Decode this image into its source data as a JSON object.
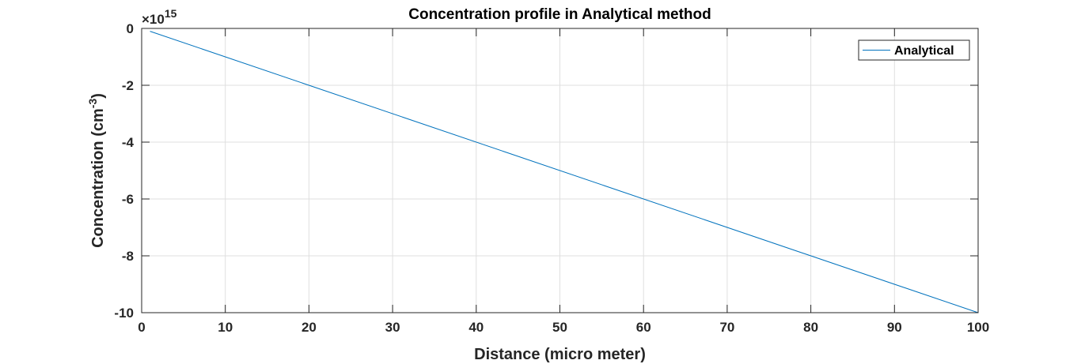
{
  "chart_data": {
    "type": "line",
    "title": "Concentration profile in Analytical method",
    "xlabel": "Distance (micro meter)",
    "ylabel": "Concentration (cm",
    "ylabel_superscript": "-3",
    "ylabel_close": ")",
    "y_exponent_prefix": "×10",
    "y_exponent": "15",
    "xlim": [
      0,
      100
    ],
    "ylim": [
      -10,
      0
    ],
    "y_scale_factor": 1000000000000000.0,
    "x_ticks": [
      0,
      10,
      20,
      30,
      40,
      50,
      60,
      70,
      80,
      90,
      100
    ],
    "x_tick_labels": [
      "0",
      "10",
      "20",
      "30",
      "40",
      "50",
      "60",
      "70",
      "80",
      "90",
      "100"
    ],
    "y_ticks": [
      0,
      -2,
      -4,
      -6,
      -8,
      -10
    ],
    "y_tick_labels": [
      "0",
      "-2",
      "-4",
      "-6",
      "-8",
      "-10"
    ],
    "grid": true,
    "legend_position": "top-right",
    "series": [
      {
        "name": "Analytical",
        "color": "#0072BD",
        "x": [
          1,
          100
        ],
        "y": [
          -0.1,
          -10
        ]
      }
    ]
  }
}
